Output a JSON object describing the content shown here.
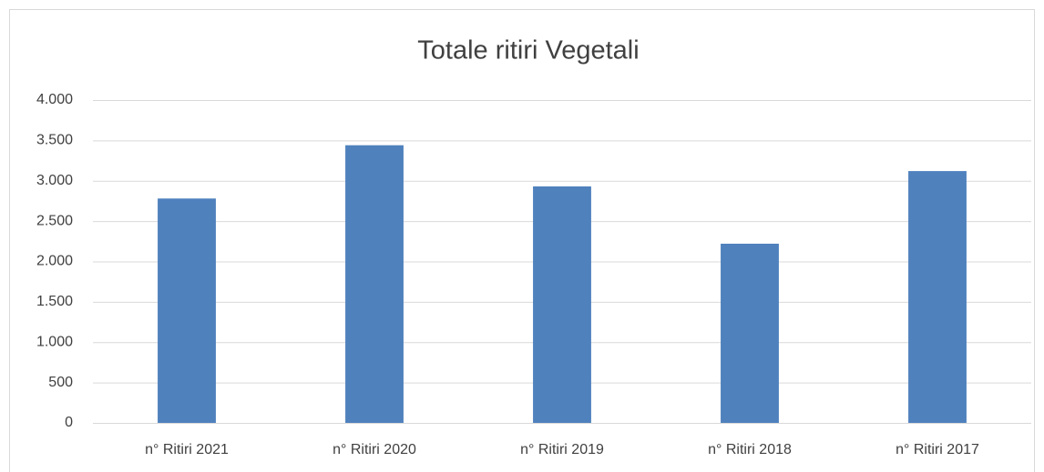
{
  "chart_data": {
    "type": "bar",
    "title": "Totale ritiri Vegetali",
    "categories": [
      "n° Ritiri 2021",
      "n° Ritiri 2020",
      "n° Ritiri 2019",
      "n° Ritiri 2018",
      "n° Ritiri 2017"
    ],
    "values": [
      2780,
      3440,
      2930,
      2220,
      3120
    ],
    "color": "#4f81bd",
    "ylim": [
      0,
      4000
    ],
    "yticks": [
      0,
      500,
      {
        "value": 1000,
        "label": "1.000"
      },
      {
        "value": 1500,
        "label": "1.500"
      },
      {
        "value": 2000,
        "label": "2.000"
      },
      {
        "value": 2500,
        "label": "2.500"
      },
      {
        "value": 3000,
        "label": "3.000"
      },
      {
        "value": 3500,
        "label": "3.500"
      },
      {
        "value": 4000,
        "label": "4.000"
      }
    ],
    "grid": true
  }
}
